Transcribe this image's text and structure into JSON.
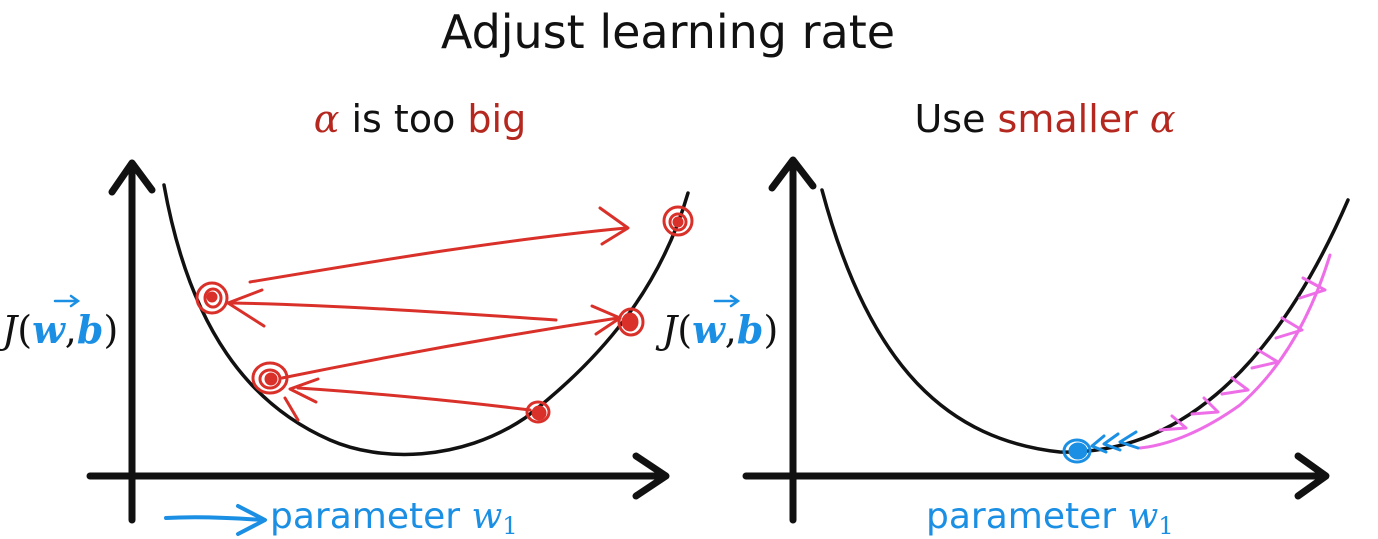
{
  "title": "Adjust learning rate",
  "colors": {
    "ink": "#111111",
    "red": "#d9312a",
    "dark_red": "#b5281f",
    "blue": "#1a8fe3",
    "magenta": "#ee6ee8"
  },
  "left_panel": {
    "subtitle_alpha": "α",
    "subtitle_mid": " is too ",
    "subtitle_big": "big",
    "ylabel": {
      "J": "J",
      "open": "(",
      "w": "w",
      "comma": ",",
      "b": "b",
      "close": ")"
    },
    "xlabel_word": "parameter ",
    "xlabel_var": "w",
    "xlabel_sub": "1"
  },
  "right_panel": {
    "subtitle_use": "Use ",
    "subtitle_smaller": "smaller ",
    "subtitle_alpha": "α",
    "ylabel": {
      "J": "J",
      "open": "(",
      "w": "w",
      "comma": ",",
      "b": "b",
      "close": ")"
    },
    "xlabel_word": "parameter ",
    "xlabel_var": "w",
    "xlabel_sub": "1"
  }
}
